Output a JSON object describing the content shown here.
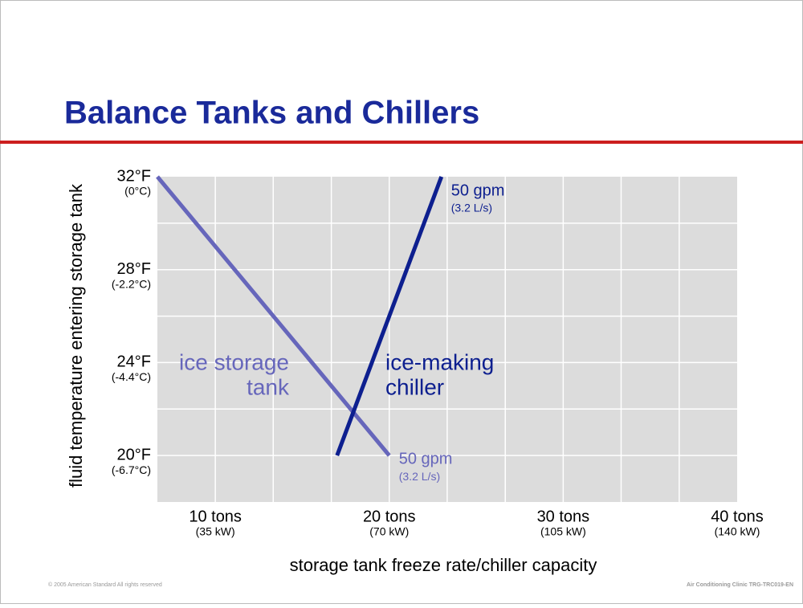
{
  "chart_data": {
    "type": "line",
    "title": "Balance Tanks and Chillers",
    "xlabel": "storage tank freeze rate/chiller capacity",
    "ylabel": "fluid temperature entering storage tank",
    "xlim": [
      6.67,
      40
    ],
    "ylim": [
      18,
      32
    ],
    "xticks": [
      {
        "value": 10,
        "label": "10 tons",
        "metric": "(35 kW)"
      },
      {
        "value": 20,
        "label": "20 tons",
        "metric": "(70 kW)"
      },
      {
        "value": 30,
        "label": "30 tons",
        "metric": "(105 kW)"
      },
      {
        "value": 40,
        "label": "40 tons",
        "metric": "(140 kW)"
      }
    ],
    "yticks": [
      {
        "value": 32,
        "label": "32°F",
        "metric": "(0°C)"
      },
      {
        "value": 28,
        "label": "28°F",
        "metric": "(-2.2°C)"
      },
      {
        "value": 24,
        "label": "24°F",
        "metric": "(-4.4°C)"
      },
      {
        "value": 20,
        "label": "20°F",
        "metric": "(-6.7°C)"
      }
    ],
    "x_gridlines": [
      10,
      13.33,
      16.67,
      20,
      23.33,
      26.67,
      30,
      33.33,
      36.67
    ],
    "y_gridlines": [
      20,
      22,
      24,
      26,
      28,
      30
    ],
    "grid": true,
    "background": "#dcdcdc",
    "series": [
      {
        "name": [
          "ice storage",
          "tank"
        ],
        "color": "#6666bb",
        "x": [
          6.67,
          20
        ],
        "values": [
          32,
          20
        ],
        "flow": "50 gpm",
        "flow_metric": "(3.2 L/s)"
      },
      {
        "name": [
          "ice-making",
          "chiller"
        ],
        "color": "#0d1f8f",
        "x": [
          17,
          23
        ],
        "values": [
          20,
          32
        ],
        "flow": "50 gpm",
        "flow_metric": "(3.2 L/s)"
      }
    ]
  },
  "footer": {
    "left": "© 2005 American Standard   All rights reserved",
    "right": "Air Conditioning Clinic TRG-TRC019-EN"
  }
}
